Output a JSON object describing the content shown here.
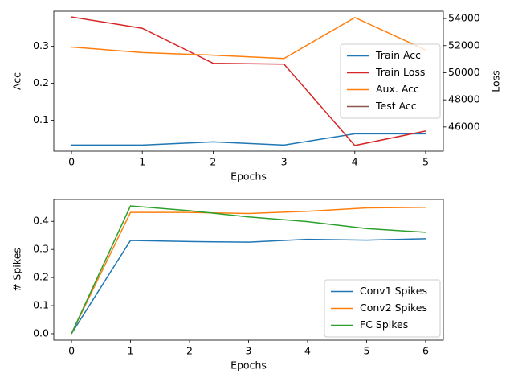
{
  "chart_data": [
    {
      "type": "line",
      "xlabel": "Epochs",
      "ylabel": "Acc",
      "y2label": "Loss",
      "x": [
        0,
        1,
        2,
        3,
        4,
        5
      ],
      "xlim": [
        -0.25,
        5.25
      ],
      "xticks": [
        0,
        1,
        2,
        3,
        4,
        5
      ],
      "ylim": [
        0.016,
        0.395
      ],
      "yticks": [
        0.1,
        0.2,
        0.3
      ],
      "y2lim": [
        44210,
        54540
      ],
      "y2ticks": [
        46000,
        48000,
        50000,
        52000,
        54000
      ],
      "legend": "center right",
      "series": [
        {
          "name": "Train Acc",
          "color": "#1f77b4",
          "values": [
            0.0326,
            0.0326,
            0.0413,
            0.0326,
            0.063,
            0.063
          ]
        },
        {
          "name": "Train Loss",
          "color": "#d62728",
          "axis": "y2",
          "values": [
            54120,
            53280,
            50700,
            50640,
            44630,
            45700
          ]
        },
        {
          "name": "Aux. Acc",
          "color": "#ff7f0e",
          "values": [
            0.298,
            0.283,
            0.276,
            0.267,
            0.378,
            0.29
          ]
        },
        {
          "name": "Test Acc",
          "color": "#8c564b",
          "values": [
            null,
            null,
            null,
            null,
            null,
            null
          ]
        }
      ]
    },
    {
      "type": "line",
      "xlabel": "Epochs",
      "ylabel": "# Spikes",
      "x": [
        0,
        1,
        2,
        3,
        4,
        5,
        6
      ],
      "xlim": [
        -0.3,
        6.3
      ],
      "xticks": [
        0,
        1,
        2,
        3,
        4,
        5,
        6
      ],
      "ylim": [
        -0.023,
        0.478
      ],
      "yticks": [
        {
          "value": 0,
          "label": "0.0"
        },
        0.1,
        0.2,
        0.3,
        0.4
      ],
      "legend": "lower right",
      "series": [
        {
          "name": "Conv1 Spikes",
          "color": "#1f77b4",
          "values": [
            0,
            0.332,
            0.328,
            0.326,
            0.336,
            0.333,
            0.338
          ]
        },
        {
          "name": "Conv2 Spikes",
          "color": "#ff7f0e",
          "values": [
            0,
            0.432,
            0.432,
            0.428,
            0.436,
            0.448,
            0.45
          ]
        },
        {
          "name": "FC Spikes",
          "color": "#2ca02c",
          "values": [
            0,
            0.455,
            0.438,
            0.416,
            0.399,
            0.374,
            0.361
          ]
        }
      ]
    }
  ]
}
